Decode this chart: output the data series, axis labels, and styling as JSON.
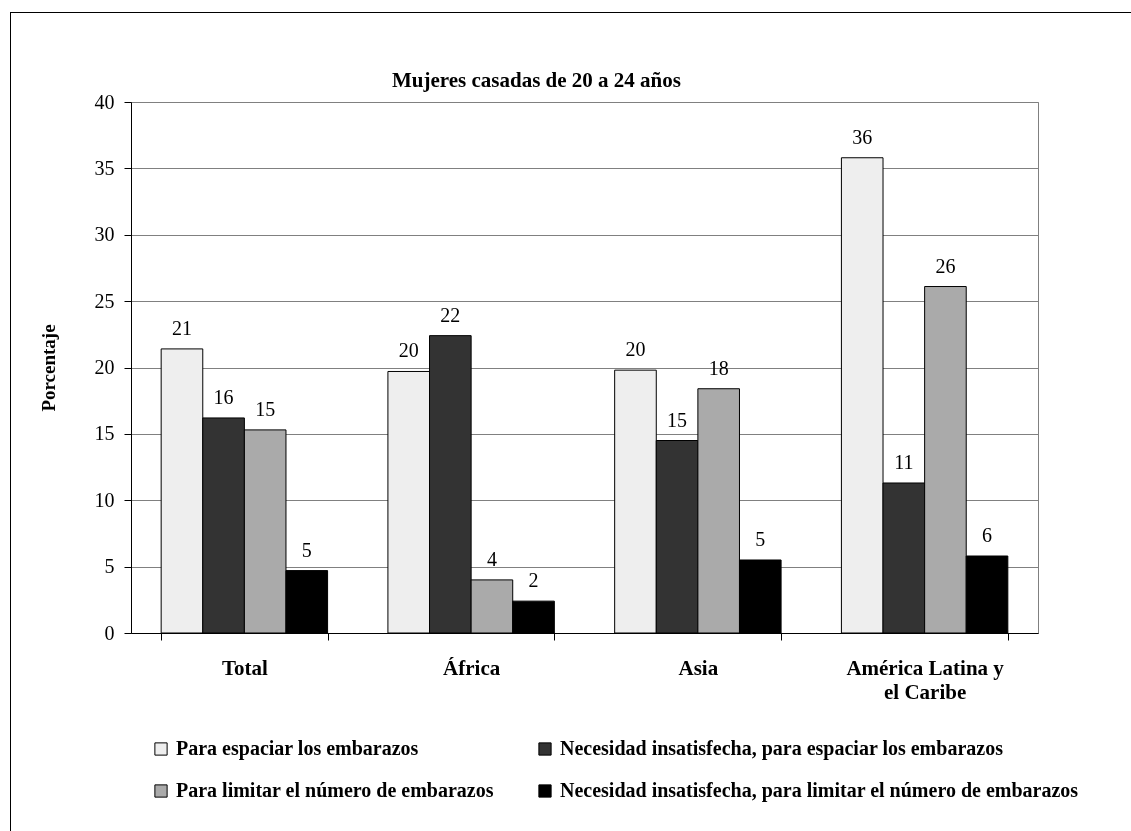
{
  "chart_data": {
    "type": "bar",
    "title": "Mujeres casadas de 20 a 24 años",
    "ylabel": "Porcentaje",
    "categories": [
      "Total",
      "África",
      "Asia",
      "América Latina y el Caribe"
    ],
    "series": [
      {
        "name": "Para espaciar los embarazos",
        "color": "#eeeeee",
        "values": [
          21.4,
          19.7,
          19.8,
          35.8
        ],
        "value_labels": [
          "21",
          "20",
          "20",
          "36"
        ]
      },
      {
        "name": "Necesidad insatisfecha, para espaciar los embarazos",
        "color": "#333333",
        "values": [
          16.2,
          22.4,
          14.5,
          11.3
        ],
        "value_labels": [
          "16",
          "22",
          "15",
          "11"
        ]
      },
      {
        "name": "Para limitar el número de embarazos",
        "color": "#aaaaaa",
        "values": [
          15.3,
          4.0,
          18.4,
          26.1
        ],
        "value_labels": [
          "15",
          "4",
          "18",
          "26"
        ]
      },
      {
        "name": "Necesidad insatisfecha, para limitar el número de embarazos",
        "color": "#000000",
        "values": [
          4.7,
          2.4,
          5.5,
          5.8
        ],
        "value_labels": [
          "5",
          "2",
          "5",
          "6"
        ]
      }
    ],
    "ylim": [
      0,
      40
    ],
    "yticks": [
      0,
      5,
      10,
      15,
      20,
      25,
      30,
      35,
      40
    ],
    "grid": "y",
    "legend": "bottom"
  }
}
